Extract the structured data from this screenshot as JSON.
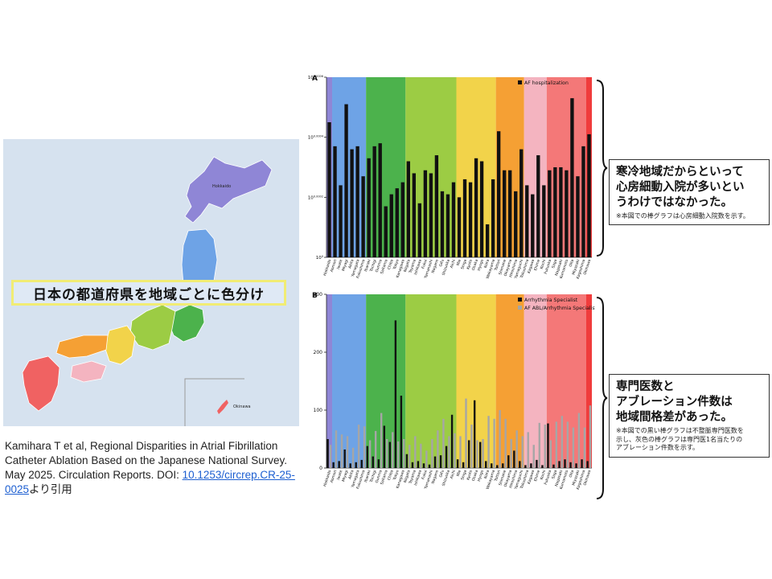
{
  "map": {
    "banner": "日本の都道府県を地域ごとに色分け",
    "labels": [
      "Hokkaido",
      "Okinawa"
    ],
    "colors": {
      "sea": "#d6e2ef",
      "hokkaido": "#8f86d6",
      "tohoku": "#6ea3e6",
      "kanto": "#4cb24c",
      "chubu": "#9ccc44",
      "kansai": "#f2d34a",
      "chugoku": "#f5a034",
      "shikoku": "#f4b4c0",
      "kyushu": "#f06262"
    }
  },
  "citation": {
    "text": "Kamihara T et al, Regional Disparities in Atrial Fibrillation Catheter Ablation Based on the Japanese National Survey. May 2025. Circulation Reports. DOI: ",
    "link": "10.1253/circrep.CR-25-0025",
    "suffix": "より引用"
  },
  "notes": {
    "a": {
      "main": "寒冷地域だからといって\n心房細動入院が多いとい\nうわけではなかった。",
      "sub": "※本図での棒グラフは心房細動入院数を示す。"
    },
    "b": {
      "main": "専門医数と\nアブレーション件数は\n地域間格差があった。",
      "sub": "※本図での黒い棒グラフは不整脈専門医数を\n示し、灰色の棒グラフは専門医1名当たりの\nアブレーション件数を示す。"
    }
  },
  "chart_data": [
    {
      "type": "bar",
      "panel": "A",
      "legend": [
        "AF hospitalization"
      ],
      "legend_position": "top-right",
      "y_scale": "log",
      "yticks": [
        "10^0.0006",
        "10^0.0004",
        "10^0.0002",
        "10^0"
      ],
      "ylim": [
        0,
        0.0006
      ],
      "categories": [
        "Hokkaido",
        "Aomori",
        "Iwate",
        "Miyagi",
        "Akita",
        "Yamagata",
        "Fukushima",
        "Ibaraki",
        "Tochigi",
        "Gunma",
        "Saitama",
        "Chiba",
        "Tokyo",
        "Kanagawa",
        "Niigata",
        "Toyama",
        "Ishikawa",
        "Fukui",
        "Yamanashi",
        "Nagano",
        "Gifu",
        "Shizuoka",
        "Aichi",
        "Mie",
        "Shiga",
        "Kyoto",
        "Osaka",
        "Hyogo",
        "Nara",
        "Wakayama",
        "Tottori",
        "Shimane",
        "Okayama",
        "Hiroshima",
        "Yamaguchi",
        "Tokushima",
        "Kagawa",
        "Ehime",
        "Kochi",
        "Fukuoka",
        "Saga",
        "Nagasaki",
        "Kumamoto",
        "Oita",
        "Miyazaki",
        "Kagoshima",
        "Okinawa"
      ],
      "values": [
        0.00045,
        0.00037,
        0.00024,
        0.00051,
        0.00036,
        0.00037,
        0.00027,
        0.00033,
        0.00037,
        0.00038,
        0.00017,
        0.00021,
        0.00023,
        0.00025,
        0.00032,
        0.00028,
        0.00018,
        0.00029,
        0.00028,
        0.00034,
        0.00022,
        0.00021,
        0.00025,
        0.0002,
        0.00026,
        0.00025,
        0.00033,
        0.00032,
        0.00011,
        0.00026,
        0.00042,
        0.00029,
        0.00029,
        0.00022,
        0.00036,
        0.00024,
        0.00021,
        0.00034,
        0.00024,
        0.00029,
        0.0003,
        0.0003,
        0.00029,
        0.00053,
        0.00027,
        0.00037,
        0.00041
      ],
      "regions": [
        {
          "name": "Hokkaido",
          "color": "#8f86d6",
          "count": 1
        },
        {
          "name": "Tohoku",
          "color": "#6ea3e6",
          "count": 6
        },
        {
          "name": "Kanto",
          "color": "#4cb24c",
          "count": 7
        },
        {
          "name": "Chubu",
          "color": "#9ccc44",
          "count": 9
        },
        {
          "name": "Kinki",
          "color": "#f2d34a",
          "count": 7
        },
        {
          "name": "Chugoku",
          "color": "#f5a034",
          "count": 5
        },
        {
          "name": "Shikoku",
          "color": "#f4b4c0",
          "count": 4
        },
        {
          "name": "Kyushu",
          "color": "#f47878",
          "count": 7
        },
        {
          "name": "Okinawa",
          "color": "#f03c3c",
          "count": 1
        }
      ]
    },
    {
      "type": "bar",
      "panel": "B",
      "legend": [
        "Arrhythmia Specialist",
        "AF ABL/Arrhythmia Specialist"
      ],
      "legend_position": "top-right",
      "yticks": [
        0,
        100,
        200,
        300
      ],
      "ylim": [
        0,
        300
      ],
      "categories": [
        "Hokkaido",
        "Aomori",
        "Iwate",
        "Miyagi",
        "Akita",
        "Yamagata",
        "Fukushima",
        "Ibaraki",
        "Tochigi",
        "Gunma",
        "Saitama",
        "Chiba",
        "Tokyo",
        "Kanagawa",
        "Niigata",
        "Toyama",
        "Ishikawa",
        "Fukui",
        "Yamanashi",
        "Nagano",
        "Gifu",
        "Shizuoka",
        "Aichi",
        "Mie",
        "Shiga",
        "Kyoto",
        "Osaka",
        "Hyogo",
        "Nara",
        "Wakayama",
        "Tottori",
        "Shimane",
        "Okayama",
        "Hiroshima",
        "Yamaguchi",
        "Tokushima",
        "Kagawa",
        "Ehime",
        "Kochi",
        "Fukuoka",
        "Saga",
        "Nagasaki",
        "Kumamoto",
        "Oita",
        "Miyazaki",
        "Kagoshima",
        "Okinawa"
      ],
      "series": [
        {
          "name": "Arrhythmia Specialist",
          "color": "#111111",
          "values": [
            50,
            10,
            12,
            32,
            8,
            10,
            14,
            38,
            20,
            15,
            73,
            45,
            255,
            125,
            24,
            10,
            12,
            8,
            6,
            20,
            22,
            38,
            92,
            15,
            10,
            48,
            117,
            45,
            12,
            8,
            5,
            8,
            22,
            30,
            12,
            5,
            8,
            14,
            5,
            77,
            6,
            12,
            15,
            10,
            8,
            15,
            12
          ]
        },
        {
          "name": "AF ABL/Arrhythmia Specialist",
          "color": "#a6a6a6",
          "values": [
            40,
            65,
            58,
            55,
            35,
            75,
            72,
            48,
            64,
            95,
            50,
            62,
            46,
            50,
            40,
            55,
            42,
            30,
            50,
            65,
            85,
            55,
            60,
            55,
            120,
            75,
            48,
            50,
            90,
            85,
            100,
            85,
            50,
            65,
            55,
            62,
            40,
            78,
            75,
            48,
            80,
            90,
            80,
            70,
            95,
            70,
            108
          ]
        }
      ]
    }
  ]
}
